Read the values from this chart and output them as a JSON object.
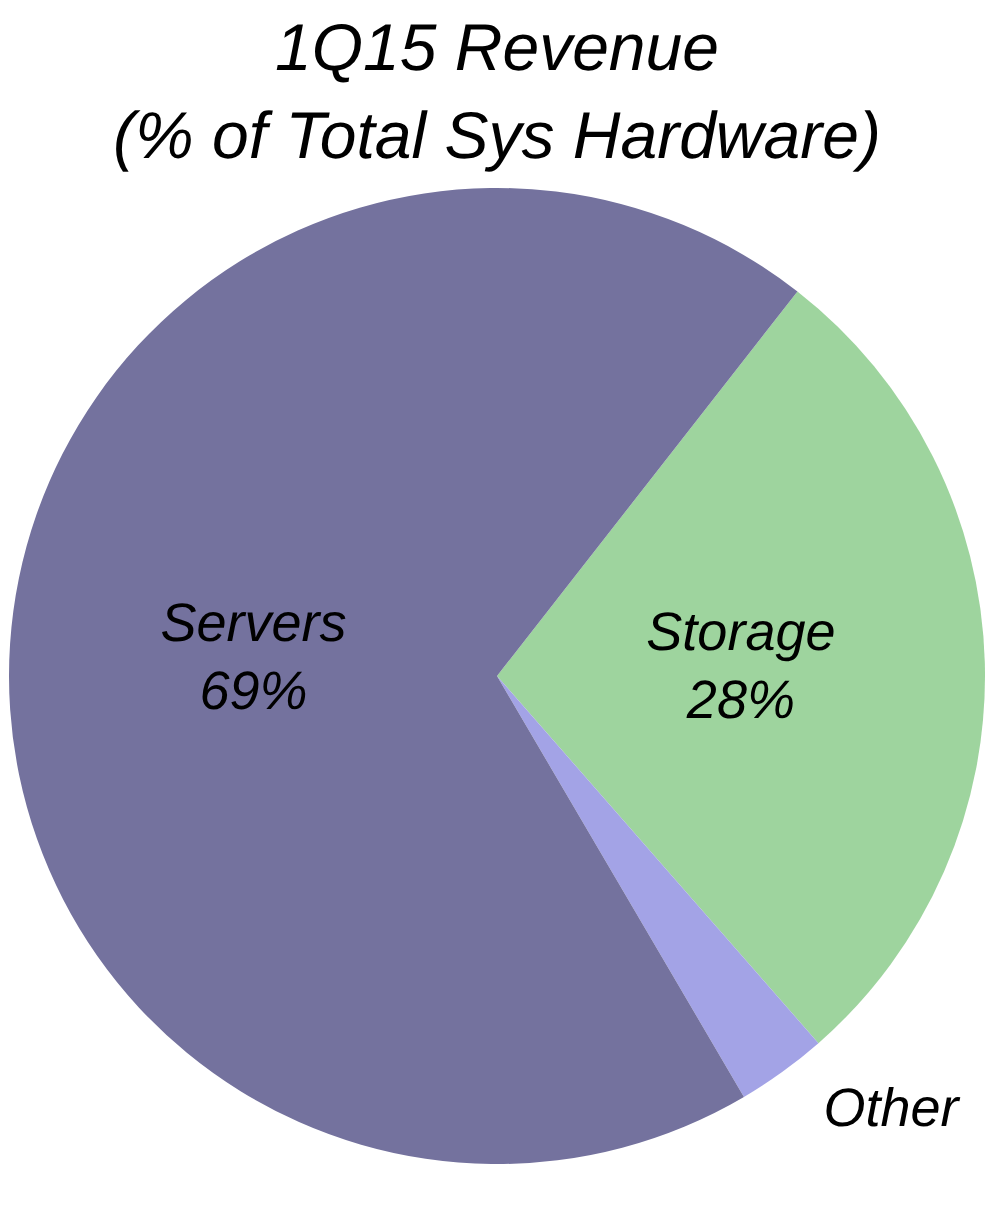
{
  "chart_data": {
    "type": "pie",
    "title": "1Q15 Revenue\n(% of Total Sys Hardware)",
    "categories": [
      "Storage",
      "Other",
      "Servers"
    ],
    "values": [
      28,
      3,
      69
    ],
    "colors": [
      "#9ed49e",
      "#a3a3e6",
      "#74729e"
    ],
    "value_labels": [
      "28%",
      null,
      "69%"
    ],
    "legend": false
  }
}
